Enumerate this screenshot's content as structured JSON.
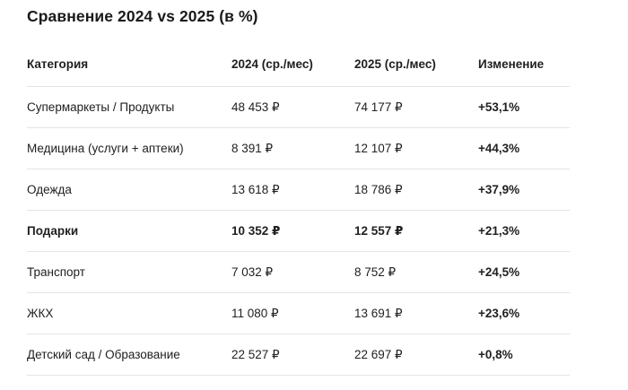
{
  "title": "Сравнение 2024 vs 2025 (в %)",
  "table": {
    "headers": {
      "category": "Категория",
      "y2024": "2024 (ср./мес)",
      "y2025": "2025 (ср./мес)",
      "change": "Изменение"
    },
    "rows": [
      {
        "category": "Супермаркеты / Продукты",
        "y2024": "48 453 ₽",
        "y2025": "74 177 ₽",
        "change": "+53,1%",
        "bold": false
      },
      {
        "category": "Медицина (услуги + аптеки)",
        "y2024": "8 391 ₽",
        "y2025": "12 107 ₽",
        "change": "+44,3%",
        "bold": false
      },
      {
        "category": "Одежда",
        "y2024": "13 618 ₽",
        "y2025": "18 786 ₽",
        "change": "+37,9%",
        "bold": false
      },
      {
        "category": "Подарки",
        "y2024": "10 352 ₽",
        "y2025": "12 557 ₽",
        "change": "+21,3%",
        "bold": true
      },
      {
        "category": "Транспорт",
        "y2024": "7 032 ₽",
        "y2025": "8 752 ₽",
        "change": "+24,5%",
        "bold": false
      },
      {
        "category": "ЖКХ",
        "y2024": "11 080 ₽",
        "y2025": "13 691 ₽",
        "change": "+23,6%",
        "bold": false
      },
      {
        "category": "Детский сад / Образование",
        "y2024": "22 527 ₽",
        "y2025": "22 697 ₽",
        "change": "+0,8%",
        "bold": false
      }
    ]
  },
  "chart_data": {
    "type": "table",
    "title": "Сравнение 2024 vs 2025 (в %)",
    "columns": [
      "Категория",
      "2024 (ср./мес)",
      "2025 (ср./мес)",
      "Изменение"
    ],
    "currency": "₽",
    "categories": [
      "Супермаркеты / Продукты",
      "Медицина (услуги + аптеки)",
      "Одежда",
      "Подарки",
      "Транспорт",
      "ЖКХ",
      "Детский сад / Образование"
    ],
    "series": [
      {
        "name": "2024 (ср./мес)",
        "values": [
          48453,
          8391,
          13618,
          10352,
          7032,
          11080,
          22527
        ]
      },
      {
        "name": "2025 (ср./мес)",
        "values": [
          74177,
          12107,
          18786,
          12557,
          8752,
          13691,
          22697
        ]
      },
      {
        "name": "Изменение %",
        "values": [
          53.1,
          44.3,
          37.9,
          21.3,
          24.5,
          23.6,
          0.8
        ]
      }
    ]
  },
  "colors": {
    "text": "#1f1f1f",
    "title": "#1a1a1a",
    "divider": "#e4e4e4",
    "background": "#ffffff"
  }
}
